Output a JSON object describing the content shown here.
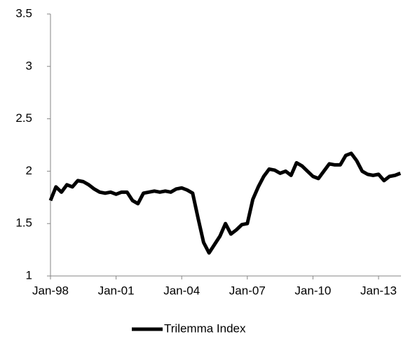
{
  "chart_data": {
    "type": "line",
    "categories": [
      "Jan-98",
      null,
      null,
      null,
      null,
      null,
      null,
      null,
      null,
      null,
      null,
      null,
      "Jan-01",
      null,
      null,
      null,
      null,
      null,
      null,
      null,
      null,
      null,
      null,
      null,
      "Jan-04",
      null,
      null,
      null,
      null,
      null,
      null,
      null,
      null,
      null,
      null,
      null,
      "Jan-07",
      null,
      null,
      null,
      null,
      null,
      null,
      null,
      null,
      null,
      null,
      null,
      "Jan-10",
      null,
      null,
      null,
      null,
      null,
      null,
      null,
      null,
      null,
      null,
      null,
      "Jan-13",
      null,
      null,
      null,
      null
    ],
    "series": [
      {
        "name": "Trilemma Index",
        "color": "#000000",
        "values": [
          1.72,
          1.85,
          1.8,
          1.87,
          1.85,
          1.91,
          1.9,
          1.87,
          1.83,
          1.8,
          1.79,
          1.8,
          1.78,
          1.8,
          1.8,
          1.72,
          1.69,
          1.79,
          1.8,
          1.81,
          1.8,
          1.81,
          1.8,
          1.83,
          1.84,
          1.82,
          1.79,
          1.55,
          1.32,
          1.22,
          1.3,
          1.38,
          1.5,
          1.4,
          1.44,
          1.49,
          1.5,
          1.73,
          1.85,
          1.95,
          2.02,
          2.01,
          1.98,
          2.0,
          1.96,
          2.08,
          2.05,
          2.0,
          1.95,
          1.93,
          2.0,
          2.07,
          2.06,
          2.06,
          2.15,
          2.17,
          2.1,
          2.0,
          1.97,
          1.96,
          1.97,
          1.91,
          1.95,
          1.96,
          1.98
        ]
      }
    ],
    "ylim": [
      1,
      3.5
    ],
    "yticks": [
      1,
      1.5,
      2,
      2.5,
      3,
      3.5
    ],
    "grid": false,
    "legend": "bottom"
  }
}
